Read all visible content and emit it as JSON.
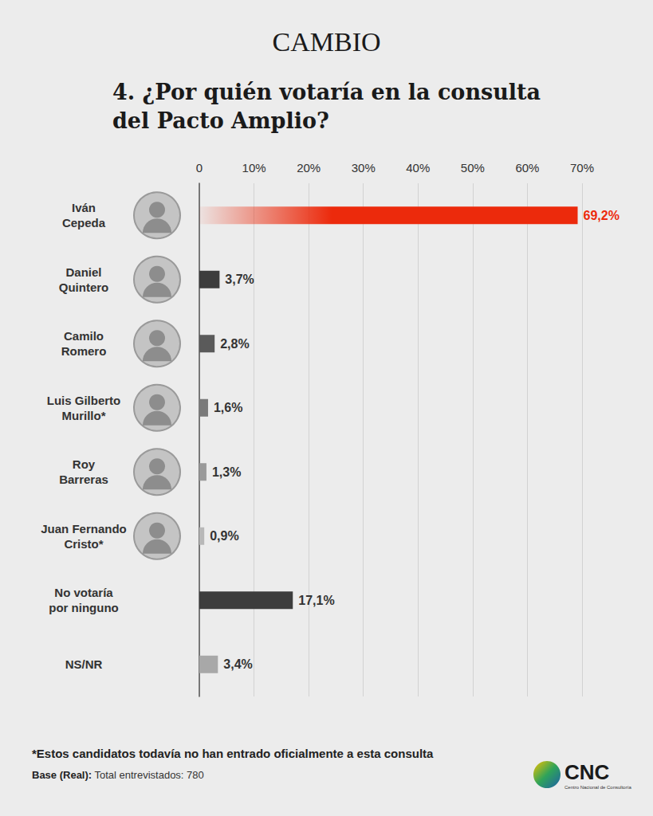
{
  "chart_data": {
    "type": "bar",
    "orientation": "horizontal",
    "header": "CAMBIO",
    "title": "4. ¿Por quién votaría en la consulta\ndel Pacto Amplio?",
    "categories": [
      "Iván\nCepeda",
      "Daniel\nQuintero",
      "Camilo\nRomero",
      "Luis Gilberto\nMurillo*",
      "Roy\nBarreras",
      "Juan Fernando\nCristo*",
      "No votaría\npor ninguno",
      "NS/NR"
    ],
    "values": [
      69.2,
      3.7,
      2.8,
      1.6,
      1.3,
      0.9,
      17.1,
      3.4
    ],
    "value_labels": [
      "69,2%",
      "3,7%",
      "2,8%",
      "1,6%",
      "1,3%",
      "0,9%",
      "17,1%",
      "3,4%"
    ],
    "colors": [
      "#ec2a0c",
      "#3d3d3d",
      "#5a5a5a",
      "#7a7a7a",
      "#9a9a9a",
      "#b8b8b8",
      "#3d3d3d",
      "#a8a8a8"
    ],
    "xlim": [
      0,
      70
    ],
    "xticks": [
      0,
      {
        "value": 10,
        "label": "10%"
      },
      {
        "value": 20,
        "label": "20%"
      },
      {
        "value": 30,
        "label": "30%"
      },
      {
        "value": 40,
        "label": "40%"
      },
      {
        "value": 50,
        "label": "50%"
      },
      {
        "value": 60,
        "label": "60%"
      },
      {
        "value": 70,
        "label": "70%"
      }
    ],
    "grid": true,
    "data_labels": true,
    "footnote": "*Estos candidatos todavía no han entrado oficialmente a esta consulta",
    "base_label": "Base (Real):",
    "base_text": "Total entrevistados: 780",
    "logo": "CNC",
    "logo_subtitle": "Centro Nacional de Consultoría"
  }
}
